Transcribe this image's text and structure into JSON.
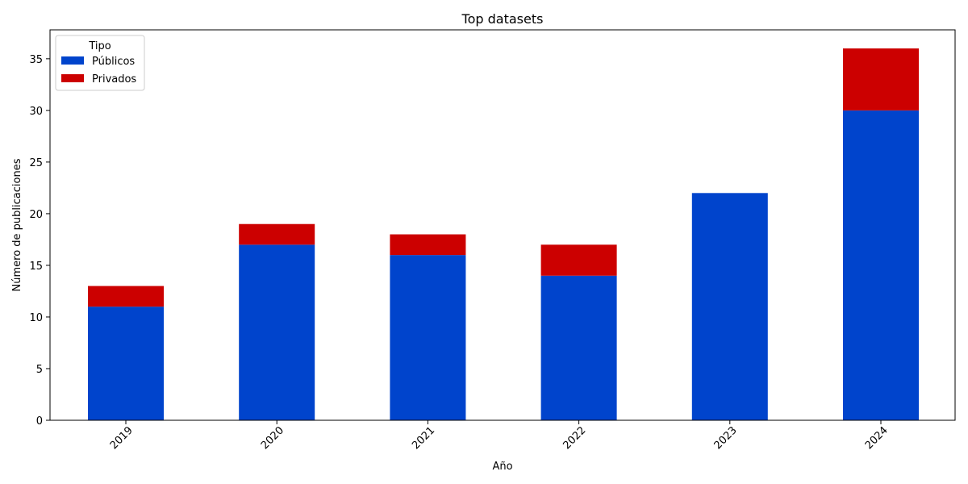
{
  "chart_data": {
    "type": "bar",
    "stacked": true,
    "title": "Top datasets",
    "xlabel": "Año",
    "ylabel": "Número de publicaciones",
    "categories": [
      "2019",
      "2020",
      "2021",
      "2022",
      "2023",
      "2024"
    ],
    "series": [
      {
        "name": "Públicos",
        "color": "#0044cc",
        "values": [
          11,
          17,
          16,
          14,
          22,
          30
        ]
      },
      {
        "name": "Privados",
        "color": "#cc0000",
        "values": [
          2,
          2,
          2,
          3,
          0,
          6
        ]
      }
    ],
    "ylim": [
      0,
      37.8
    ],
    "yticks": [
      0,
      5,
      10,
      15,
      20,
      25,
      30,
      35
    ],
    "grid": false,
    "legend": {
      "title": "Tipo",
      "position": "top-left"
    }
  }
}
